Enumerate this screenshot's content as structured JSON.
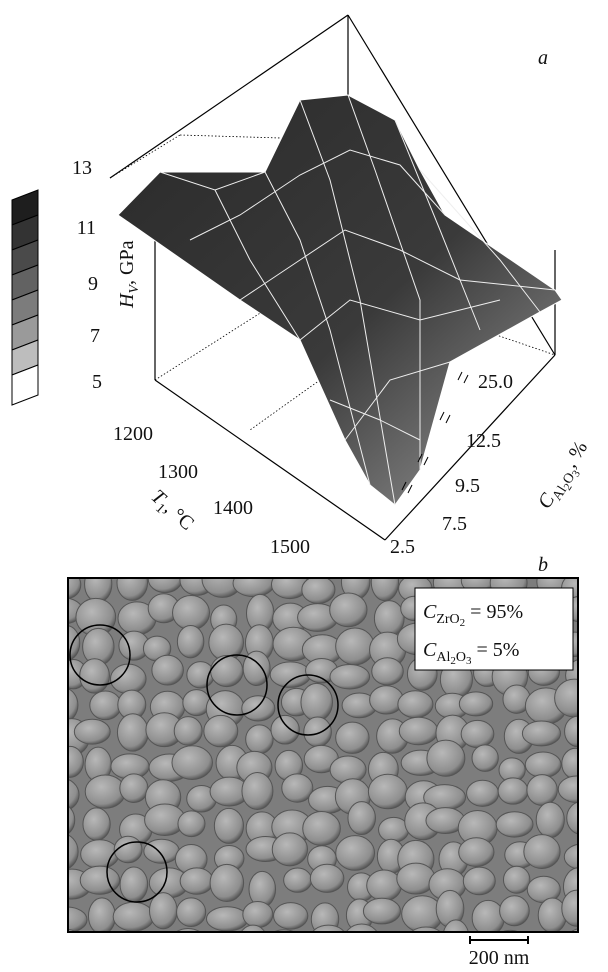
{
  "panel_a": {
    "label": "a",
    "z_axis": {
      "symbol": "H",
      "subscript": "V",
      "unit": ", GPa",
      "ticks": [
        "13",
        "11",
        "9",
        "7",
        "5"
      ]
    },
    "t_axis": {
      "symbol": "T",
      "subscript": "1",
      "unit": ", °C",
      "ticks": [
        "1200",
        "1300",
        "1400",
        "1500"
      ]
    },
    "c_axis": {
      "symbol": "C",
      "subscript": [
        "Al",
        "2",
        "O",
        "3"
      ],
      "unit": ", %",
      "ticks": [
        "25.0",
        "12.5",
        "9.5",
        "7.5",
        "2.5"
      ]
    }
  },
  "panel_b": {
    "label": "b",
    "inset": [
      {
        "symbol": "C",
        "subscript": [
          "ZrO",
          "2"
        ],
        "rest": " = 95%"
      },
      {
        "symbol": "C",
        "subscript": [
          "Al",
          "2",
          "O",
          "3"
        ],
        "rest": " = 5%"
      }
    ],
    "scale_bar": "200 nm"
  }
}
